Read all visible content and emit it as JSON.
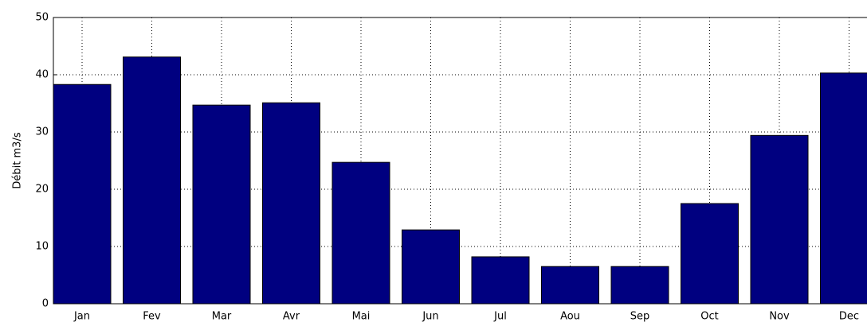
{
  "chart_data": {
    "type": "bar",
    "ylabel": "Débit m3/s",
    "categories": [
      "Jan",
      "Fev",
      "Mar",
      "Avr",
      "Mai",
      "Jun",
      "Jul",
      "Aou",
      "Sep",
      "Oct",
      "Nov",
      "Dec"
    ],
    "values": [
      38.3,
      43.1,
      34.7,
      35.1,
      24.7,
      12.9,
      8.2,
      6.5,
      6.5,
      17.5,
      29.4,
      40.3
    ],
    "color": "#000080",
    "ylim": [
      0,
      50
    ],
    "yticks": [
      0,
      10,
      20,
      30,
      40,
      50
    ],
    "grid": true
  }
}
